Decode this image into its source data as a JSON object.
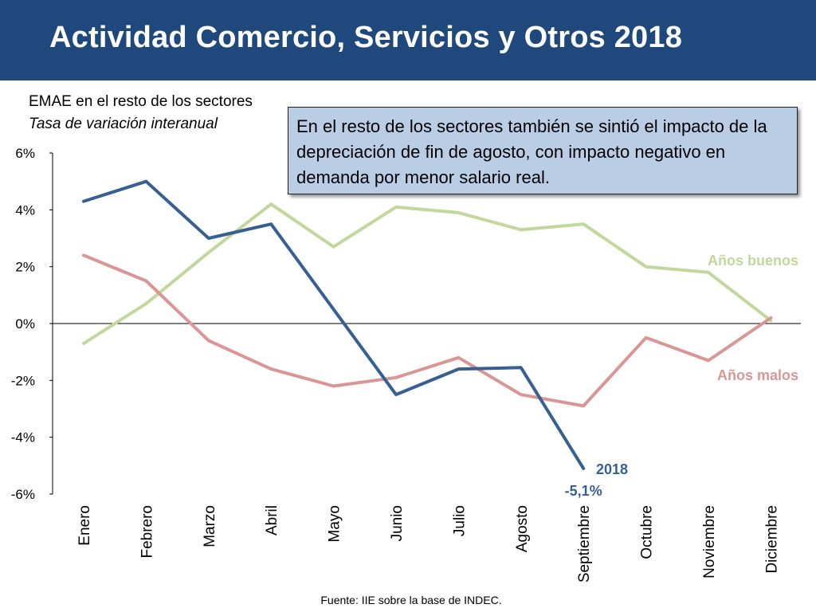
{
  "header": {
    "title": "Actividad Comercio, Servicios y Otros 2018"
  },
  "subtitle": {
    "line1": "EMAE en el resto de los sectores",
    "line2": "Tasa de variación interanual"
  },
  "callout": {
    "text": "En el resto de los sectores también se sintió el impacto de la depreciación de fin de agosto, con impacto negativo en demanda por menor salario real."
  },
  "source": "Fuente: IIE sobre la base de INDEC.",
  "chart_data": {
    "type": "line",
    "categories": [
      "Enero",
      "Febrero",
      "Marzo",
      "Abril",
      "Mayo",
      "Junio",
      "Julio",
      "Agosto",
      "Septiembre",
      "Octubre",
      "Noviembre",
      "Diciembre"
    ],
    "ylim": [
      -6,
      6
    ],
    "yticks": [
      6,
      4,
      2,
      0,
      -2,
      -4,
      -6
    ],
    "ytick_labels": [
      "6%",
      "4%",
      "2%",
      "0%",
      "-2%",
      "-4%",
      "-6%"
    ],
    "series": [
      {
        "name": "Años buenos",
        "color": "#c3d69b",
        "values": [
          -0.7,
          0.7,
          2.5,
          4.2,
          2.7,
          4.1,
          3.9,
          3.3,
          3.5,
          2.0,
          1.8,
          0.1
        ]
      },
      {
        "name": "Años malos",
        "color": "#d99694",
        "values": [
          2.4,
          1.5,
          -0.6,
          -1.6,
          -2.2,
          -1.9,
          -1.2,
          -2.5,
          -2.9,
          -0.5,
          -1.3,
          0.2
        ]
      },
      {
        "name": "2018",
        "color": "#376092",
        "values": [
          4.3,
          5.0,
          3.0,
          3.5,
          0.5,
          -2.5,
          -1.6,
          -1.55,
          -5.1,
          null,
          null,
          null
        ]
      }
    ],
    "annotations": [
      {
        "text": "-5,1%",
        "series": "2018",
        "category": "Septiembre",
        "value": -5.1
      }
    ]
  }
}
